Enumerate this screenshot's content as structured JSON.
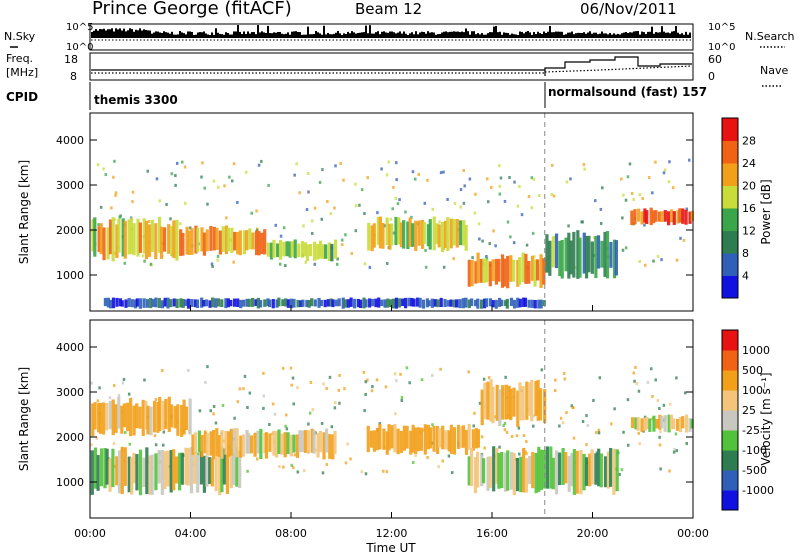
{
  "header": {
    "station": "Prince George (fitACF)",
    "beam": "Beam 12",
    "date": "06/Nov/2011"
  },
  "left_labels": {
    "nsky": "N.Sky",
    "freq": "Freq.",
    "freq_unit": "[MHz]",
    "cpid": "CPID"
  },
  "right_labels": {
    "nsearch": "N.Search",
    "nave": "Nave"
  },
  "noise_ticks": {
    "high": "10^5",
    "low": "10^0"
  },
  "freq_ticks": [
    "18",
    "8"
  ],
  "nave_ticks": [
    "60",
    "0"
  ],
  "cpid_segments": [
    {
      "label": "themis 3300",
      "start_hour": 0.0,
      "end_hour": 18.1
    },
    {
      "label": "normalsound (fast) 157",
      "start_hour": 18.1,
      "end_hour": 24.0
    }
  ],
  "colors": {
    "power": [
      "#1010e0",
      "#2f5fb8",
      "#2e7d50",
      "#3aa64a",
      "#c8dc3a",
      "#f2a019",
      "#f06214",
      "#e81212"
    ],
    "velocity": [
      "#e81212",
      "#f06214",
      "#f2a019",
      "#f3c47a",
      "#c8c8c0",
      "#52c23a",
      "#2e7d50",
      "#2f5fb8",
      "#1010e0"
    ]
  },
  "chart_data": [
    {
      "type": "heatmap",
      "panel": "power",
      "ylabel": "Slant Range [km]",
      "ylim": [
        200,
        4600
      ],
      "yticks": [
        "1000",
        "2000",
        "3000",
        "4000"
      ],
      "xlim": [
        0,
        24
      ],
      "colorbar_label": "Power [dB]",
      "colorbar_ticks": [
        "4",
        "8",
        "12",
        "16",
        "20",
        "24",
        "28"
      ],
      "bands": [
        {
          "start_hour": 0.0,
          "end_hour": 3.5,
          "range_low": 1300,
          "range_high": 2300,
          "power": 20
        },
        {
          "start_hour": 3.5,
          "end_hour": 7.0,
          "range_low": 1400,
          "range_high": 2100,
          "power": 22
        },
        {
          "start_hour": 7.0,
          "end_hour": 9.8,
          "range_low": 1300,
          "range_high": 1800,
          "power": 16
        },
        {
          "start_hour": 11.0,
          "end_hour": 15.0,
          "range_low": 1500,
          "range_high": 2300,
          "power": 18
        },
        {
          "start_hour": 15.0,
          "end_hour": 18.1,
          "range_low": 700,
          "range_high": 1500,
          "power": 22
        },
        {
          "start_hour": 18.1,
          "end_hour": 21.0,
          "range_low": 900,
          "range_high": 2000,
          "power": 12
        },
        {
          "start_hour": 21.5,
          "end_hour": 24.0,
          "range_low": 2100,
          "range_high": 2500,
          "power": 26
        },
        {
          "start_hour": 0.5,
          "end_hour": 18.1,
          "range_low": 250,
          "range_high": 500,
          "power": 6
        }
      ]
    },
    {
      "type": "heatmap",
      "panel": "velocity",
      "xlabel": "Time UT",
      "ylabel": "Slant Range [km]",
      "ylim": [
        200,
        4600
      ],
      "yticks": [
        "1000",
        "2000",
        "3000",
        "4000"
      ],
      "xlim": [
        0,
        24
      ],
      "xticks": [
        "00:00",
        "04:00",
        "08:00",
        "12:00",
        "16:00",
        "20:00",
        "00:00"
      ],
      "colorbar_label": "Velocity [m s⁻¹]",
      "colorbar_ticks": [
        "1000",
        "500",
        "100",
        "25",
        "-25",
        "-100",
        "-500",
        "-1000"
      ],
      "bands": [
        {
          "start_hour": 0.0,
          "end_hour": 6.0,
          "range_low": 700,
          "range_high": 1800,
          "velocity": 0
        },
        {
          "start_hour": 0.0,
          "end_hour": 4.0,
          "range_low": 2000,
          "range_high": 2900,
          "velocity": -150
        },
        {
          "start_hour": 4.0,
          "end_hour": 9.8,
          "range_low": 1500,
          "range_high": 2200,
          "velocity": -120
        },
        {
          "start_hour": 11.0,
          "end_hour": 15.5,
          "range_low": 1600,
          "range_high": 2300,
          "velocity": -200
        },
        {
          "start_hour": 15.5,
          "end_hour": 18.1,
          "range_low": 2200,
          "range_high": 3300,
          "velocity": -150
        },
        {
          "start_hour": 15.0,
          "end_hour": 21.0,
          "range_low": 700,
          "range_high": 1800,
          "velocity": 0
        },
        {
          "start_hour": 21.5,
          "end_hour": 24.0,
          "range_low": 2100,
          "range_high": 2500,
          "velocity": -60
        }
      ]
    }
  ]
}
